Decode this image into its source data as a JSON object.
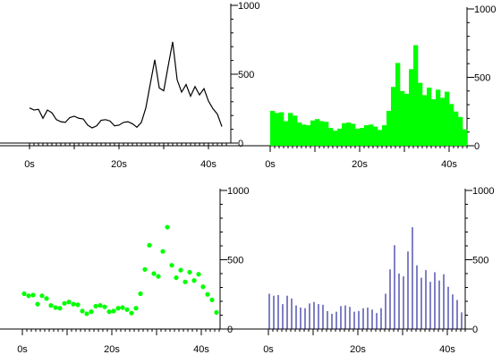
{
  "chart_data": [
    {
      "type": "line",
      "title": "",
      "xlabel": "",
      "ylabel": "",
      "x_ticks": [
        "0s",
        "20s",
        "40s"
      ],
      "y_ticks": [
        "0",
        "500",
        "1000"
      ],
      "xlim": [
        -6,
        44
      ],
      "ylim": [
        0,
        1000
      ],
      "grid": false,
      "color": "#000000",
      "x": [
        0,
        1,
        2,
        3,
        4,
        5,
        6,
        7,
        8,
        9,
        10,
        11,
        12,
        13,
        14,
        15,
        16,
        17,
        18,
        19,
        20,
        21,
        22,
        23,
        24,
        25,
        26,
        27,
        28,
        29,
        30,
        31,
        32,
        33,
        34,
        35,
        36,
        37,
        38,
        39,
        40,
        41,
        42,
        43
      ],
      "values": [
        255,
        240,
        245,
        180,
        240,
        220,
        170,
        155,
        150,
        185,
        195,
        180,
        175,
        130,
        110,
        125,
        165,
        170,
        160,
        125,
        130,
        150,
        155,
        140,
        115,
        150,
        255,
        430,
        605,
        400,
        380,
        560,
        735,
        460,
        370,
        425,
        340,
        410,
        350,
        395,
        305,
        250,
        210,
        120
      ]
    },
    {
      "type": "bar",
      "title": "",
      "xlabel": "",
      "ylabel": "",
      "x_ticks": [
        "0s",
        "20s",
        "40s"
      ],
      "y_ticks": [
        "0",
        "500",
        "1000"
      ],
      "xlim": [
        0,
        44
      ],
      "ylim": [
        0,
        1000
      ],
      "grid": false,
      "color": "#00ff00",
      "x": [
        0,
        1,
        2,
        3,
        4,
        5,
        6,
        7,
        8,
        9,
        10,
        11,
        12,
        13,
        14,
        15,
        16,
        17,
        18,
        19,
        20,
        21,
        22,
        23,
        24,
        25,
        26,
        27,
        28,
        29,
        30,
        31,
        32,
        33,
        34,
        35,
        36,
        37,
        38,
        39,
        40,
        41,
        42,
        43
      ],
      "values": [
        255,
        240,
        245,
        180,
        240,
        220,
        170,
        155,
        150,
        185,
        195,
        180,
        175,
        130,
        110,
        125,
        165,
        170,
        160,
        125,
        130,
        150,
        155,
        140,
        115,
        150,
        255,
        430,
        605,
        400,
        380,
        560,
        735,
        460,
        370,
        425,
        340,
        410,
        350,
        395,
        305,
        250,
        210,
        120
      ]
    },
    {
      "type": "scatter",
      "title": "",
      "xlabel": "",
      "ylabel": "",
      "x_ticks": [
        "0s",
        "20s",
        "40s"
      ],
      "y_ticks": [
        "0",
        "500",
        "1000"
      ],
      "xlim": [
        0,
        44
      ],
      "ylim": [
        0,
        1000
      ],
      "grid": false,
      "color": "#00ff00",
      "x": [
        0,
        1,
        2,
        3,
        4,
        5,
        6,
        7,
        8,
        9,
        10,
        11,
        12,
        13,
        14,
        15,
        16,
        17,
        18,
        19,
        20,
        21,
        22,
        23,
        24,
        25,
        26,
        27,
        28,
        29,
        30,
        31,
        32,
        33,
        34,
        35,
        36,
        37,
        38,
        39,
        40,
        41,
        42,
        43
      ],
      "values": [
        255,
        240,
        245,
        180,
        240,
        220,
        170,
        155,
        150,
        185,
        195,
        180,
        175,
        130,
        110,
        125,
        165,
        170,
        160,
        125,
        130,
        150,
        155,
        140,
        115,
        150,
        255,
        430,
        605,
        400,
        380,
        560,
        735,
        460,
        370,
        425,
        340,
        410,
        350,
        395,
        305,
        250,
        210,
        120
      ]
    },
    {
      "type": "bar",
      "title": "",
      "xlabel": "",
      "ylabel": "",
      "x_ticks": [
        "0s",
        "20s",
        "40s"
      ],
      "y_ticks": [
        "0",
        "500",
        "1000"
      ],
      "xlim": [
        0,
        44
      ],
      "ylim": [
        0,
        1000
      ],
      "grid": false,
      "color": "#00008b",
      "x": [
        0,
        1,
        2,
        3,
        4,
        5,
        6,
        7,
        8,
        9,
        10,
        11,
        12,
        13,
        14,
        15,
        16,
        17,
        18,
        19,
        20,
        21,
        22,
        23,
        24,
        25,
        26,
        27,
        28,
        29,
        30,
        31,
        32,
        33,
        34,
        35,
        36,
        37,
        38,
        39,
        40,
        41,
        42,
        43
      ],
      "values": [
        255,
        240,
        245,
        180,
        240,
        220,
        170,
        155,
        150,
        185,
        195,
        180,
        175,
        130,
        110,
        125,
        165,
        170,
        160,
        125,
        130,
        150,
        155,
        140,
        115,
        150,
        255,
        430,
        605,
        400,
        380,
        560,
        735,
        460,
        370,
        425,
        340,
        410,
        350,
        395,
        305,
        250,
        210,
        120
      ]
    }
  ]
}
